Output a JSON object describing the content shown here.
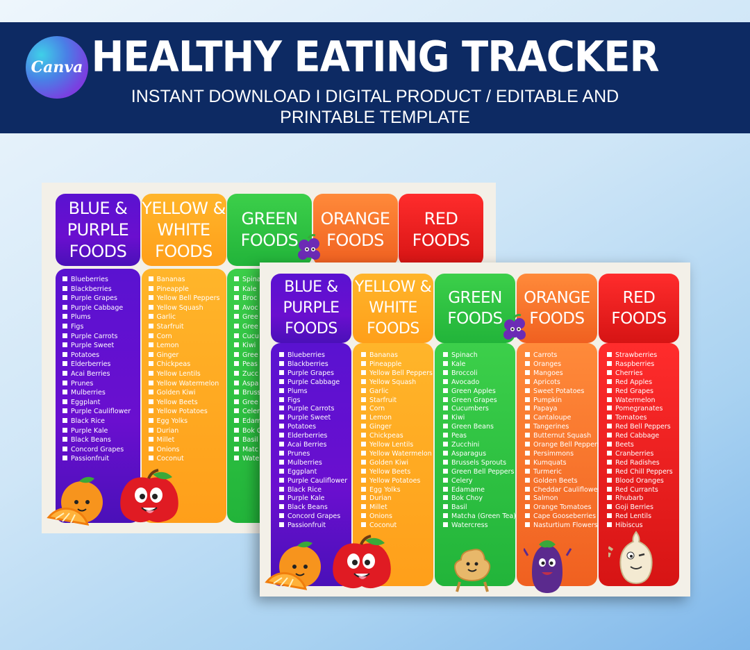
{
  "logo": {
    "text": "Canva"
  },
  "banner": {
    "title": "HEALTHY EATING TRACKER",
    "subtitle": "INSTANT DOWNLOAD I DIGITAL PRODUCT / EDITABLE AND PRINTABLE TEMPLATE"
  },
  "colors": {
    "banner": "#0d2a63",
    "purple": "#5a12d0",
    "yellow": "#ffa61f",
    "green": "#2ec23f",
    "orange": "#f8782c",
    "red": "#ec1f1f"
  },
  "columns": [
    {
      "key": "purple",
      "title": "BLUE &\nPURPLE\nFOODS",
      "items": [
        "Blueberries",
        "Blackberries",
        "Purple Grapes",
        "Purple Cabbage",
        "Plums",
        "Figs",
        "Purple Carrots",
        "Purple Sweet",
        "Potatoes",
        "Elderberries",
        "Acai Berries",
        "Prunes",
        "Mulberries",
        "Eggplant",
        "Purple Cauliflower",
        "Black Rice",
        "Purple Kale",
        "Black Beans",
        "Concord Grapes",
        "Passionfruit"
      ]
    },
    {
      "key": "yellow",
      "title": "YELLOW &\nWHITE\nFOODS",
      "items": [
        "Bananas",
        "Pineapple",
        "Yellow Bell Peppers",
        "Yellow Squash",
        "Garlic",
        "Starfruit",
        "Corn",
        "Lemon",
        "Ginger",
        "Chickpeas",
        "Yellow Lentils",
        "Yellow Watermelon",
        "Golden Kiwi",
        "Yellow Beets",
        "Yellow Potatoes",
        "Egg Yolks",
        "Durian",
        "Millet",
        "Onions",
        "Coconut"
      ]
    },
    {
      "key": "green",
      "title": "GREEN\nFOODS",
      "items": [
        "Spinach",
        "Kale",
        "Broccoli",
        "Avocado",
        "Green Apples",
        "Green Grapes",
        "Cucumbers",
        "Kiwi",
        "Green Beans",
        "Peas",
        "Zucchini",
        "Asparagus",
        "Brussels Sprouts",
        "Green Bell Peppers",
        "Celery",
        "Edamame",
        "Bok Choy",
        "Basil",
        "Matcha (Green Tea)",
        "Watercress"
      ]
    },
    {
      "key": "orange",
      "title": "ORANGE\nFOODS",
      "items": [
        "Carrots",
        "Oranges",
        "Mangoes",
        "Apricots",
        "Sweet Potatoes",
        "Pumpkin",
        "Papaya",
        "Cantaloupe",
        "Tangerines",
        "Butternut Squash",
        "Orange Bell Peppers",
        "Persimmons",
        "Kumquats",
        "Turmeric",
        "Golden Beets",
        "Cheddar Cauliflower",
        "Salmon",
        "Orange Tomatoes",
        "Cape Gooseberries",
        "Nasturtium Flowers"
      ]
    },
    {
      "key": "red",
      "title": "RED\nFOODS",
      "items": [
        "Strawberries",
        "Raspberries",
        "Cherries",
        "Red Apples",
        "Red Grapes",
        "Watermelon",
        "Pomegranates",
        "Tomatoes",
        "Red Bell Peppers",
        "Red Cabbage",
        "Beets",
        "Cranberries",
        "Red Radishes",
        "Red Chill Peppers",
        "Blood Oranges",
        "Red Currants",
        "Rhubarb",
        "Goji Berries",
        "Red Lentils",
        "Hibiscus"
      ]
    }
  ],
  "back_visible_items": {
    "green": [
      "Spina",
      "Kale",
      "Broc",
      "Avoc",
      "Gree",
      "Gree",
      "Cucu",
      "Kiwi",
      "Gree",
      "Peas",
      "Zucc",
      "Aspa",
      "Bruss",
      "Gree",
      "Celer",
      "Edam",
      "Bok C",
      "Basil",
      "Matc",
      "Wate"
    ]
  }
}
